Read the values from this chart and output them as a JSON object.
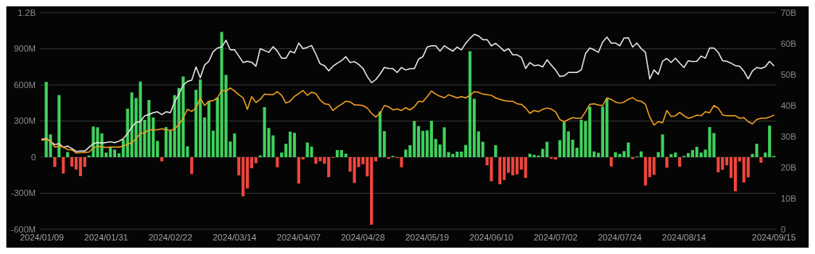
{
  "chart_data": {
    "type": "bar",
    "categories": [
      "2024/01/09",
      null,
      null,
      null,
      null,
      null,
      null,
      null,
      null,
      null,
      null,
      null,
      null,
      null,
      null,
      "2024/01/31",
      null,
      null,
      null,
      null,
      null,
      null,
      null,
      null,
      null,
      null,
      null,
      null,
      null,
      null,
      "2024/02/22",
      null,
      null,
      null,
      null,
      null,
      null,
      null,
      null,
      null,
      null,
      null,
      null,
      null,
      null,
      "2024/03/14",
      null,
      null,
      null,
      null,
      null,
      null,
      null,
      null,
      null,
      null,
      null,
      null,
      null,
      null,
      "2024/04/07",
      null,
      null,
      null,
      null,
      null,
      null,
      null,
      null,
      null,
      null,
      null,
      null,
      null,
      null,
      "2024/04/28",
      null,
      null,
      null,
      null,
      null,
      null,
      null,
      null,
      null,
      null,
      null,
      null,
      null,
      null,
      "2024/05/19",
      null,
      null,
      null,
      null,
      null,
      null,
      null,
      null,
      null,
      null,
      null,
      null,
      null,
      null,
      "2024/06/10",
      null,
      null,
      null,
      null,
      null,
      null,
      null,
      null,
      null,
      null,
      null,
      null,
      null,
      null,
      "2024/07/02",
      null,
      null,
      null,
      null,
      null,
      null,
      null,
      null,
      null,
      null,
      null,
      null,
      null,
      null,
      "2024/07/24",
      null,
      null,
      null,
      null,
      null,
      null,
      null,
      null,
      null,
      null,
      null,
      null,
      null,
      null,
      "2024/08/14",
      null,
      null,
      null,
      null,
      null,
      null,
      null,
      null,
      null,
      null,
      null,
      null,
      null,
      null,
      null,
      null,
      null,
      null,
      null,
      null,
      "2024/09/15"
    ],
    "series": [
      {
        "values": [
          0,
          625000000,
          189000000,
          -80000000,
          515000000,
          -136000000,
          42000000,
          -78000000,
          -103000000,
          -158000000,
          -80000000,
          13000000,
          254000000,
          248000000,
          197000000,
          38000000,
          80000000,
          63000000,
          32000000,
          147000000,
          403000000,
          538000000,
          491000000,
          628000000,
          310000000,
          475000000,
          330000000,
          135000000,
          -35000000,
          250000000,
          220000000,
          515000000,
          575000000,
          670000000,
          90000000,
          -140000000,
          560000000,
          645000000,
          330000000,
          465000000,
          220000000,
          494000000,
          1040000000,
          683000000,
          130000000,
          197000000,
          -151000000,
          -325000000,
          -260000000,
          -92000000,
          -50000000,
          15000000,
          416000000,
          242000000,
          181000000,
          -84000000,
          38000000,
          111000000,
          212000000,
          202000000,
          -220000000,
          -19000000,
          122000000,
          88000000,
          -55000000,
          -34000000,
          -55000000,
          -166000000,
          -6000000,
          59000000,
          59000000,
          29000000,
          -120000000,
          -214000000,
          -82000000,
          -59000000,
          -160000000,
          -561000000,
          -34000000,
          380000000,
          216000000,
          -13000000,
          10000000,
          -8000000,
          -84000000,
          63000000,
          99000000,
          300000000,
          258000000,
          218000000,
          223000000,
          302000000,
          151000000,
          105000000,
          248000000,
          42000000,
          27000000,
          46000000,
          46000000,
          101000000,
          880000000,
          485000000,
          214000000,
          128000000,
          -67000000,
          -200000000,
          99000000,
          -225000000,
          -189000000,
          -130000000,
          -151000000,
          -143000000,
          -103000000,
          -172000000,
          29000000,
          19000000,
          13000000,
          69000000,
          128000000,
          -13000000,
          -19000000,
          141000000,
          294000000,
          214000000,
          145000000,
          78000000,
          311000000,
          300000000,
          420000000,
          48000000,
          36000000,
          420000000,
          487000000,
          -78000000,
          42000000,
          27000000,
          50000000,
          122000000,
          -15000000,
          6000000,
          48000000,
          -235000000,
          -166000000,
          -147000000,
          42000000,
          189000000,
          -88000000,
          25000000,
          38000000,
          -80000000,
          10000000,
          34000000,
          59000000,
          86000000,
          38000000,
          63000000,
          250000000,
          200000000,
          -126000000,
          -105000000,
          -67000000,
          -172000000,
          -284000000,
          -36000000,
          -210000000,
          -168000000,
          27000000,
          111000000,
          -46000000,
          38000000,
          262000000,
          10000000
        ],
        "colors": [
          "#3fd15c",
          "#3fd15c",
          "#3fd15c",
          "#f2463d",
          "#3fd15c",
          "#f2463d",
          "#3fd15c",
          "#f2463d",
          "#f2463d",
          "#f2463d",
          "#f2463d",
          "#3fd15c",
          "#3fd15c",
          "#3fd15c",
          "#3fd15c",
          "#3fd15c",
          "#3fd15c",
          "#3fd15c",
          "#3fd15c",
          "#3fd15c",
          "#3fd15c",
          "#3fd15c",
          "#3fd15c",
          "#3fd15c",
          "#3fd15c",
          "#3fd15c",
          "#3fd15c",
          "#3fd15c",
          "#f2463d",
          "#3fd15c",
          "#3fd15c",
          "#3fd15c",
          "#3fd15c",
          "#3fd15c",
          "#3fd15c",
          "#f2463d",
          "#3fd15c",
          "#3fd15c",
          "#3fd15c",
          "#3fd15c",
          "#3fd15c",
          "#3fd15c",
          "#3fd15c",
          "#3fd15c",
          "#3fd15c",
          "#3fd15c",
          "#f2463d",
          "#f2463d",
          "#f2463d",
          "#f2463d",
          "#f2463d",
          "#3fd15c",
          "#3fd15c",
          "#3fd15c",
          "#3fd15c",
          "#f2463d",
          "#3fd15c",
          "#3fd15c",
          "#3fd15c",
          "#3fd15c",
          "#f2463d",
          "#f2463d",
          "#3fd15c",
          "#3fd15c",
          "#f2463d",
          "#f2463d",
          "#f2463d",
          "#f2463d",
          "#f2463d",
          "#3fd15c",
          "#3fd15c",
          "#3fd15c",
          "#f2463d",
          "#f2463d",
          "#f2463d",
          "#f2463d",
          "#f2463d",
          "#f2463d",
          "#f2463d",
          "#3fd15c",
          "#3fd15c",
          "#f2463d",
          "#3fd15c",
          "#f2463d",
          "#f2463d",
          "#3fd15c",
          "#3fd15c",
          "#3fd15c",
          "#3fd15c",
          "#3fd15c",
          "#3fd15c",
          "#3fd15c",
          "#3fd15c",
          "#3fd15c",
          "#3fd15c",
          "#3fd15c",
          "#3fd15c",
          "#3fd15c",
          "#3fd15c",
          "#3fd15c",
          "#3fd15c",
          "#3fd15c",
          "#3fd15c",
          "#3fd15c",
          "#f2463d",
          "#f2463d",
          "#3fd15c",
          "#f2463d",
          "#f2463d",
          "#f2463d",
          "#f2463d",
          "#f2463d",
          "#f2463d",
          "#f2463d",
          "#3fd15c",
          "#3fd15c",
          "#3fd15c",
          "#3fd15c",
          "#3fd15c",
          "#f2463d",
          "#f2463d",
          "#3fd15c",
          "#3fd15c",
          "#3fd15c",
          "#3fd15c",
          "#3fd15c",
          "#3fd15c",
          "#3fd15c",
          "#3fd15c",
          "#3fd15c",
          "#3fd15c",
          "#3fd15c",
          "#3fd15c",
          "#f2463d",
          "#3fd15c",
          "#3fd15c",
          "#3fd15c",
          "#3fd15c",
          "#f2463d",
          "#3fd15c",
          "#3fd15c",
          "#f2463d",
          "#f2463d",
          "#f2463d",
          "#3fd15c",
          "#3fd15c",
          "#f2463d",
          "#3fd15c",
          "#3fd15c",
          "#f2463d",
          "#3fd15c",
          "#3fd15c",
          "#3fd15c",
          "#3fd15c",
          "#3fd15c",
          "#3fd15c",
          "#3fd15c",
          "#3fd15c",
          "#f2463d",
          "#f2463d",
          "#f2463d",
          "#f2463d",
          "#f2463d",
          "#f2463d",
          "#f2463d",
          "#f2463d",
          "#3fd15c",
          "#3fd15c",
          "#f2463d",
          "#3fd15c",
          "#3fd15c",
          "#3fd15c"
        ]
      },
      {
        "type": "line",
        "axis": "y2",
        "color": "#e6e6e6",
        "values": [
          29.1,
          29.3,
          28.4,
          27.4,
          27.7,
          26.5,
          26.9,
          26.1,
          25.2,
          25.3,
          25.3,
          26.5,
          27.7,
          28.1,
          27.9,
          28.1,
          28.3,
          28.0,
          28.5,
          29.3,
          31.0,
          33.0,
          34.6,
          34.8,
          36.7,
          37.1,
          37.7,
          38.0,
          37.1,
          38.0,
          37.7,
          41.2,
          43.7,
          46.6,
          47.8,
          48.2,
          52.5,
          49.0,
          53.1,
          54.3,
          57.4,
          58.6,
          58.9,
          61.1,
          58.0,
          58.0,
          56.0,
          53.9,
          54.3,
          54.0,
          52.7,
          58.4,
          57.8,
          57.2,
          59.0,
          57.6,
          55.3,
          55.3,
          57.6,
          57.0,
          60.2,
          58.4,
          58.8,
          59.4,
          56.6,
          53.5,
          52.9,
          51.2,
          52.7,
          53.7,
          54.5,
          55.8,
          53.9,
          54.2,
          53.3,
          52.0,
          49.4,
          47.4,
          48.4,
          50.2,
          52.3,
          52.0,
          51.9,
          50.7,
          52.3,
          51.5,
          51.9,
          51.9,
          55.0,
          55.8,
          58.9,
          59.3,
          59.3,
          57.6,
          59.3,
          58.4,
          57.6,
          58.9,
          58.0,
          60.1,
          61.7,
          63.0,
          62.5,
          61.3,
          61.3,
          59.3,
          60.1,
          58.9,
          57.6,
          58.4,
          56.4,
          56.4,
          55.6,
          52.0,
          53.9,
          52.9,
          53.1,
          52.5,
          54.8,
          53.1,
          51.5,
          49.4,
          49.6,
          50.7,
          50.7,
          50.7,
          51.5,
          56.8,
          58.6,
          58.0,
          57.2,
          60.5,
          62.1,
          60.2,
          60.2,
          59.3,
          61.8,
          61.9,
          58.9,
          60.2,
          58.4,
          57.2,
          48.6,
          51.5,
          50.1,
          54.3,
          55.2,
          53.9,
          55.3,
          53.7,
          52.3,
          54.5,
          54.2,
          54.3,
          56.0,
          55.3,
          58.6,
          58.6,
          57.2,
          54.5,
          54.3,
          53.7,
          52.9,
          52.7,
          51.1,
          48.6,
          51.2,
          52.3,
          52.0,
          52.5,
          54.3,
          52.9
        ]
      },
      {
        "type": "line",
        "axis": "y2",
        "color": "#f0a020",
        "values": [
          28.8,
          29.1,
          28.5,
          26.6,
          26.9,
          26.6,
          25.8,
          25.7,
          24.7,
          24.8,
          24.8,
          25.0,
          26.3,
          26.9,
          26.6,
          26.5,
          26.6,
          26.6,
          26.6,
          26.9,
          27.5,
          28.0,
          29.3,
          31.0,
          31.1,
          32.2,
          32.2,
          32.2,
          32.5,
          32.2,
          32.0,
          32.4,
          33.9,
          35.9,
          38.8,
          38.1,
          39.2,
          42.5,
          40.0,
          41.4,
          41.6,
          42.5,
          44.9,
          44.7,
          45.7,
          44.7,
          43.5,
          42.5,
          38.8,
          42.9,
          41.0,
          42.0,
          43.7,
          43.5,
          43.5,
          44.5,
          43.3,
          40.8,
          41.4,
          43.0,
          43.9,
          44.9,
          43.3,
          44.3,
          43.9,
          41.8,
          40.6,
          40.4,
          38.4,
          39.6,
          40.4,
          41.4,
          41.2,
          40.2,
          40.2,
          40.0,
          39.2,
          37.5,
          36.3,
          37.5,
          40.0,
          39.6,
          38.6,
          38.9,
          38.4,
          39.3,
          38.6,
          39.6,
          41.4,
          41.2,
          42.9,
          44.7,
          43.7,
          43.0,
          42.5,
          43.5,
          43.0,
          42.5,
          42.9,
          42.5,
          43.3,
          44.5,
          44.3,
          43.7,
          43.5,
          43.3,
          42.5,
          42.0,
          41.6,
          41.4,
          41.4,
          40.6,
          40.4,
          39.2,
          37.5,
          38.4,
          38.0,
          38.8,
          39.2,
          38.9,
          38.0,
          35.5,
          34.8,
          35.5,
          36.1,
          35.9,
          35.9,
          38.0,
          40.4,
          40.6,
          40.2,
          40.0,
          42.5,
          42.0,
          41.1,
          40.8,
          41.1,
          42.0,
          42.6,
          41.6,
          41.4,
          40.4,
          36.3,
          33.7,
          34.8,
          34.4,
          38.4,
          36.5,
          36.7,
          37.8,
          36.7,
          35.9,
          36.3,
          36.9,
          36.7,
          38.0,
          37.7,
          40.0,
          39.2,
          37.0,
          36.7,
          36.7,
          36.7,
          35.9,
          36.1,
          34.8,
          34.1,
          35.5,
          35.9,
          35.9,
          36.3,
          36.9
        ]
      }
    ],
    "ylim": [
      -600000000,
      1200000000
    ],
    "yticks": [
      {
        "value": -600000000,
        "label": "-600M"
      },
      {
        "value": -300000000,
        "label": "-300M"
      },
      0,
      {
        "value": 300000000,
        "label": "300M"
      },
      {
        "value": 600000000,
        "label": "600M"
      },
      {
        "value": 900000000,
        "label": "900M"
      },
      {
        "value": 1200000000,
        "label": "1.2B"
      }
    ],
    "y2lim": [
      0,
      70
    ],
    "y2ticks": [
      0,
      {
        "value": 10,
        "label": "10B"
      },
      {
        "value": 20,
        "label": "20B"
      },
      {
        "value": 30,
        "label": "30B"
      },
      {
        "value": 40,
        "label": "40B"
      },
      {
        "value": 50,
        "label": "50B"
      },
      {
        "value": 60,
        "label": "60B"
      },
      {
        "value": 70,
        "label": "70B"
      }
    ],
    "grid": "y"
  }
}
